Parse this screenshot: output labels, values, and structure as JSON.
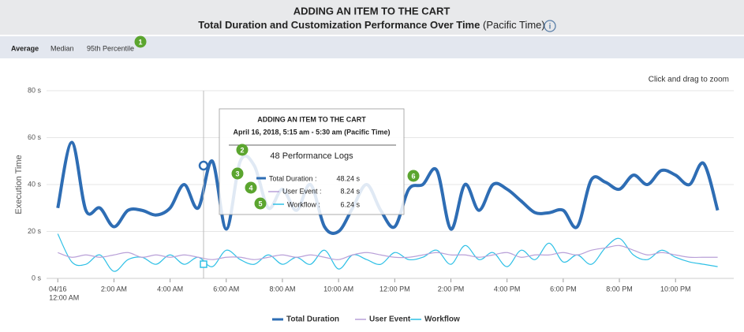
{
  "header": {
    "title": "ADDING AN ITEM TO THE CART",
    "subtitle": "Total Duration and Customization Performance Over Time",
    "subtitle_note": "(Pacific Time)"
  },
  "tabs": [
    "Average",
    "Median",
    "95th Percentile"
  ],
  "badges": [
    "1",
    "2",
    "3",
    "4",
    "5",
    "6"
  ],
  "zoom_hint": "Click and drag to zoom",
  "tooltip": {
    "title": "ADDING AN ITEM TO THE CART",
    "date": "April 16, 2018, 5:15 am - 5:30 am (Pacific Time)",
    "logs": "48 Performance Logs",
    "rows": [
      {
        "name": "Total Duration :",
        "value": "48.24 s"
      },
      {
        "name": "User Event :",
        "value": "8.24 s"
      },
      {
        "name": "Workflow :",
        "value": "6.24 s"
      }
    ]
  },
  "chart_data": {
    "type": "line",
    "y_label": "Execution Time",
    "grid": true,
    "xlim": [
      -0.4,
      23.75
    ],
    "ylim": [
      0,
      80
    ],
    "xticks": [
      {
        "value": 0,
        "label": [
          "04/16",
          "12:00 AM"
        ]
      },
      {
        "value": 2,
        "label": "2:00 AM"
      },
      {
        "value": 4,
        "label": "4:00 AM"
      },
      {
        "value": 6,
        "label": "6:00 AM"
      },
      {
        "value": 8,
        "label": "8:00 AM"
      },
      {
        "value": 10,
        "label": "10:00 AM"
      },
      {
        "value": 12,
        "label": "12:00 PM"
      },
      {
        "value": 14,
        "label": "2:00 PM"
      },
      {
        "value": 16,
        "label": "4:00 PM"
      },
      {
        "value": 18,
        "label": "6:00 PM"
      },
      {
        "value": 20,
        "label": "8:00 PM"
      },
      {
        "value": 22,
        "label": "10:00 PM"
      }
    ],
    "yticks": [
      {
        "value": 0,
        "label": "0 s"
      },
      {
        "value": 20,
        "label": "20 s"
      },
      {
        "value": 40,
        "label": "40 s"
      },
      {
        "value": 60,
        "label": "60 s"
      },
      {
        "value": 80,
        "label": "80 s"
      }
    ],
    "x": [
      0,
      0.5,
      1,
      1.5,
      2,
      2.5,
      3,
      3.5,
      4,
      4.5,
      5,
      5.5,
      6,
      6.5,
      7,
      7.5,
      8,
      8.5,
      9,
      9.5,
      10,
      10.5,
      11,
      11.5,
      12,
      12.5,
      13,
      13.5,
      14,
      14.5,
      15,
      15.5,
      16,
      16.5,
      17,
      17.5,
      18,
      18.5,
      19,
      19.5,
      20,
      20.5,
      21,
      21.5,
      22,
      22.5,
      23,
      23.5
    ],
    "series": [
      {
        "name": "Total Duration",
        "color": "#2e6db4",
        "width": 4,
        "values": [
          30,
          58,
          29,
          30,
          22,
          29,
          29,
          27,
          30,
          40,
          30,
          50,
          21,
          50,
          48,
          30,
          38,
          29,
          40,
          22,
          20,
          30,
          40,
          29,
          22,
          38,
          40,
          46,
          21,
          40,
          29,
          40,
          38,
          33,
          28,
          28,
          29,
          22,
          42,
          41,
          38,
          44,
          40,
          46,
          44,
          40,
          49,
          29
        ]
      },
      {
        "name": "User Event",
        "color": "#b9a0d8",
        "width": 1.2,
        "values": [
          11,
          9,
          10,
          9,
          10,
          11,
          9,
          10,
          9,
          10,
          9,
          8,
          9,
          9,
          8,
          9,
          10,
          9,
          10,
          9,
          8,
          10,
          11,
          10,
          9,
          9,
          10,
          11,
          10,
          10,
          9,
          10,
          11,
          9,
          10,
          10,
          11,
          10,
          12,
          13,
          14,
          12,
          10,
          11,
          10,
          9,
          9,
          9
        ]
      },
      {
        "name": "Workflow",
        "color": "#2ec0e6",
        "width": 1.2,
        "values": [
          19,
          7,
          6,
          10,
          3,
          8,
          9,
          6,
          10,
          6,
          9,
          5,
          12,
          8,
          6,
          10,
          6,
          9,
          6,
          12,
          4,
          10,
          8,
          6,
          11,
          8,
          9,
          12,
          6,
          14,
          8,
          11,
          5,
          12,
          8,
          15,
          7,
          10,
          6,
          13,
          17,
          10,
          8,
          12,
          9,
          7,
          6,
          5
        ]
      }
    ]
  }
}
